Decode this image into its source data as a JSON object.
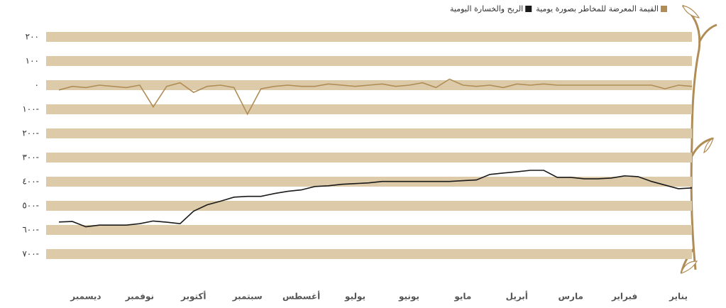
{
  "chart_data": {
    "type": "line",
    "categories": [
      null,
      null,
      "ديسمبر",
      null,
      null,
      null,
      "نوفمبر",
      null,
      null,
      null,
      "أكتوبر",
      null,
      null,
      null,
      "سبتمبر",
      null,
      null,
      null,
      "أغسطس",
      null,
      null,
      null,
      "يوليو",
      null,
      null,
      null,
      "يونيو",
      null,
      null,
      null,
      "مايو",
      null,
      null,
      null,
      "أبريل",
      null,
      null,
      null,
      "مارس",
      null,
      null,
      null,
      "فبراير",
      null,
      null,
      null,
      "يناير",
      null
    ],
    "series": [
      {
        "name": "القيمة المعرضة للمخاطر بصورة يومية",
        "color": "#b08d57",
        "values": [
          -20,
          -5,
          -10,
          0,
          -5,
          -10,
          0,
          -90,
          -5,
          10,
          -30,
          -5,
          0,
          -10,
          -120,
          -15,
          -5,
          0,
          -5,
          -5,
          5,
          0,
          -5,
          0,
          5,
          -5,
          0,
          10,
          -10,
          25,
          0,
          -5,
          0,
          -10,
          5,
          0,
          5,
          0,
          0,
          0,
          0,
          0,
          0,
          0,
          0,
          -15,
          0,
          -5
        ]
      },
      {
        "name": "الربح والخسارة اليومية",
        "color": "#1a1a1a",
        "values": [
          -567,
          -565,
          -587,
          -580,
          -580,
          -580,
          -574,
          -563,
          -568,
          -574,
          -522,
          -496,
          -481,
          -464,
          -461,
          -461,
          -449,
          -440,
          -434,
          -420,
          -417,
          -411,
          -408,
          -405,
          -399,
          -399,
          -399,
          -399,
          -399,
          -399,
          -396,
          -393,
          -370,
          -364,
          -359,
          -353,
          -353,
          -382,
          -382,
          -388,
          -388,
          -385,
          -376,
          -379,
          -399,
          -414,
          -429,
          -426
        ]
      }
    ],
    "ylim": [
      -750,
      250
    ],
    "yticks": [
      {
        "value": 200,
        "label": "٢٠٠"
      },
      {
        "value": 100,
        "label": "١٠٠"
      },
      {
        "value": 0,
        "label": "٠"
      },
      {
        "value": -100,
        "label": "١٠٠-"
      },
      {
        "value": -200,
        "label": "٢٠٠-"
      },
      {
        "value": -300,
        "label": "٣٠٠-"
      },
      {
        "value": -400,
        "label": "٤٠٠-"
      },
      {
        "value": -500,
        "label": "٥٠٠-"
      },
      {
        "value": -600,
        "label": "٦٠٠-"
      },
      {
        "value": -700,
        "label": "٧٠٠-"
      }
    ],
    "grid": true
  }
}
